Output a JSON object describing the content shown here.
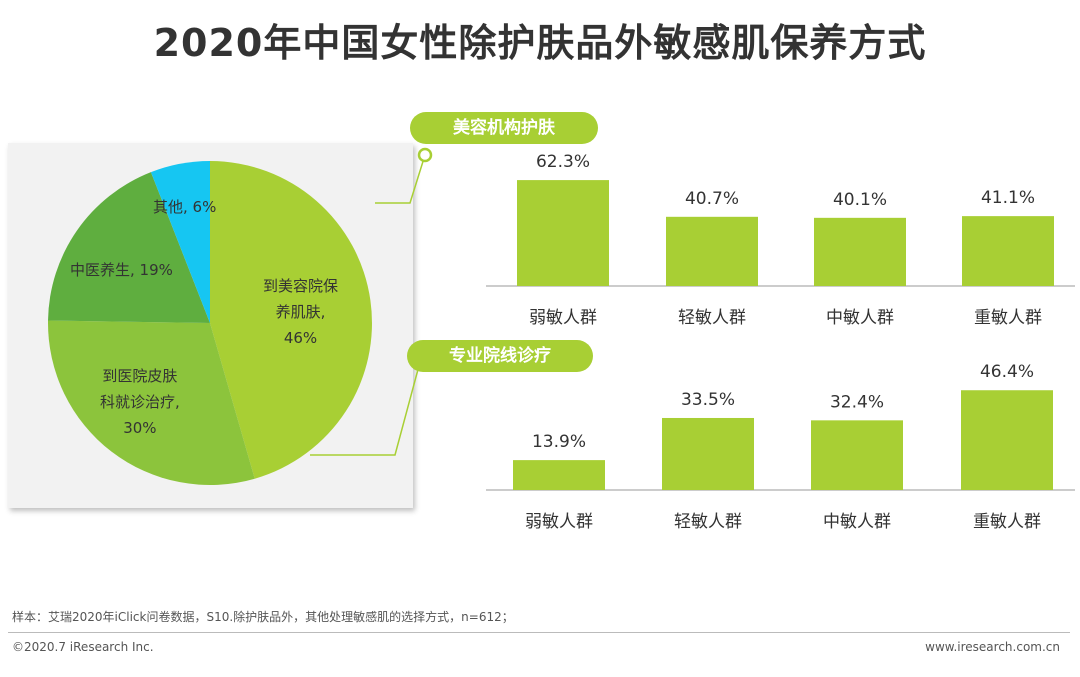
{
  "title": "2020年中国女性除护肤品外敏感肌保养方式",
  "colors": {
    "pie": [
      "#a8cf34",
      "#8cc43c",
      "#5fae3f",
      "#16c6f2"
    ],
    "bar": "#a8cf34",
    "connector": "#a8cf34"
  },
  "chart_data": [
    {
      "type": "pie",
      "slices": [
        {
          "label_lines": [
            "到美容院保",
            "养肌肤,",
            "46%"
          ],
          "value": 46
        },
        {
          "label_lines": [
            "到医院皮肤",
            "科就诊治疗,",
            "30%"
          ],
          "value": 30
        },
        {
          "label_lines": [
            "中医养生, 19%"
          ],
          "value": 19
        },
        {
          "label_lines": [
            "其他, 6%"
          ],
          "value": 6
        }
      ]
    },
    {
      "type": "bar",
      "title": "美容机构护肤",
      "categories": [
        "弱敏人群",
        "轻敏人群",
        "中敏人群",
        "重敏人群"
      ],
      "values": [
        62.3,
        40.7,
        40.1,
        41.1
      ],
      "value_labels": [
        "62.3%",
        "40.7%",
        "40.1%",
        "41.1%"
      ]
    },
    {
      "type": "bar",
      "title": "专业院线诊疗",
      "categories": [
        "弱敏人群",
        "轻敏人群",
        "中敏人群",
        "重敏人群"
      ],
      "values": [
        13.9,
        33.5,
        32.4,
        46.4
      ],
      "value_labels": [
        "13.9%",
        "33.5%",
        "32.4%",
        "46.4%"
      ]
    }
  ],
  "footer": {
    "note": "样本：艾瑞2020年iClick问卷数据，S10.除护肤品外，其他处理敏感肌的选择方式，n=612；",
    "copyright": "©2020.7 iResearch Inc.",
    "site": "www.iresearch.com.cn"
  }
}
